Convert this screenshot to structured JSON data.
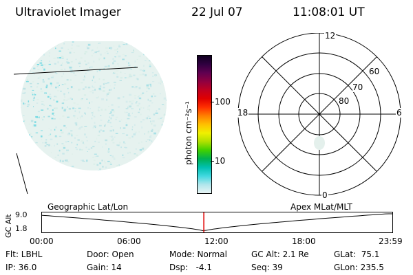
{
  "header": {
    "instrument": "Ultraviolet Imager",
    "date": "22 Jul 07",
    "time": "11:08:01 UT"
  },
  "colorbar": {
    "unit_label": "photon cm⁻²s⁻¹",
    "ticks": [
      "100",
      "10"
    ],
    "stops": [
      "#e8f4f4",
      "#b0e6ec",
      "#40d8e0",
      "#00c0b0",
      "#00b050",
      "#40d000",
      "#b0e000",
      "#f0f000",
      "#ffc000",
      "#ff8000",
      "#ff3000",
      "#e00000",
      "#c00020",
      "#900040",
      "#600050",
      "#300040",
      "#100020"
    ]
  },
  "polar_plot": {
    "mlt_labels": {
      "top": "12",
      "bottom": "0",
      "left": "18",
      "right": "6"
    },
    "lat_labels": [
      "60",
      "70",
      "80"
    ]
  },
  "timeline": {
    "left_title": "Geographic Lat/Lon",
    "right_title": "Apex MLat/MLT",
    "axis_title": "GC Alt",
    "y_ticks": [
      "9.0",
      "1.8"
    ],
    "x_ticks": [
      "00:00",
      "06:00",
      "12:00",
      "18:00",
      "23:59"
    ],
    "marker_fraction": 0.463
  },
  "info": {
    "flt": "Flt: LBHL",
    "ip": "IP: 36.0",
    "door": "Door: Open",
    "gain": "Gain: 14",
    "mode": "Mode: Normal",
    "dsp": "Dsp:   -4.1",
    "gcalt": "GC Alt: 2.1 Re",
    "seq": "Seq: 39",
    "glat": "GLat:  75.1",
    "glon": "GLon: 235.5"
  }
}
